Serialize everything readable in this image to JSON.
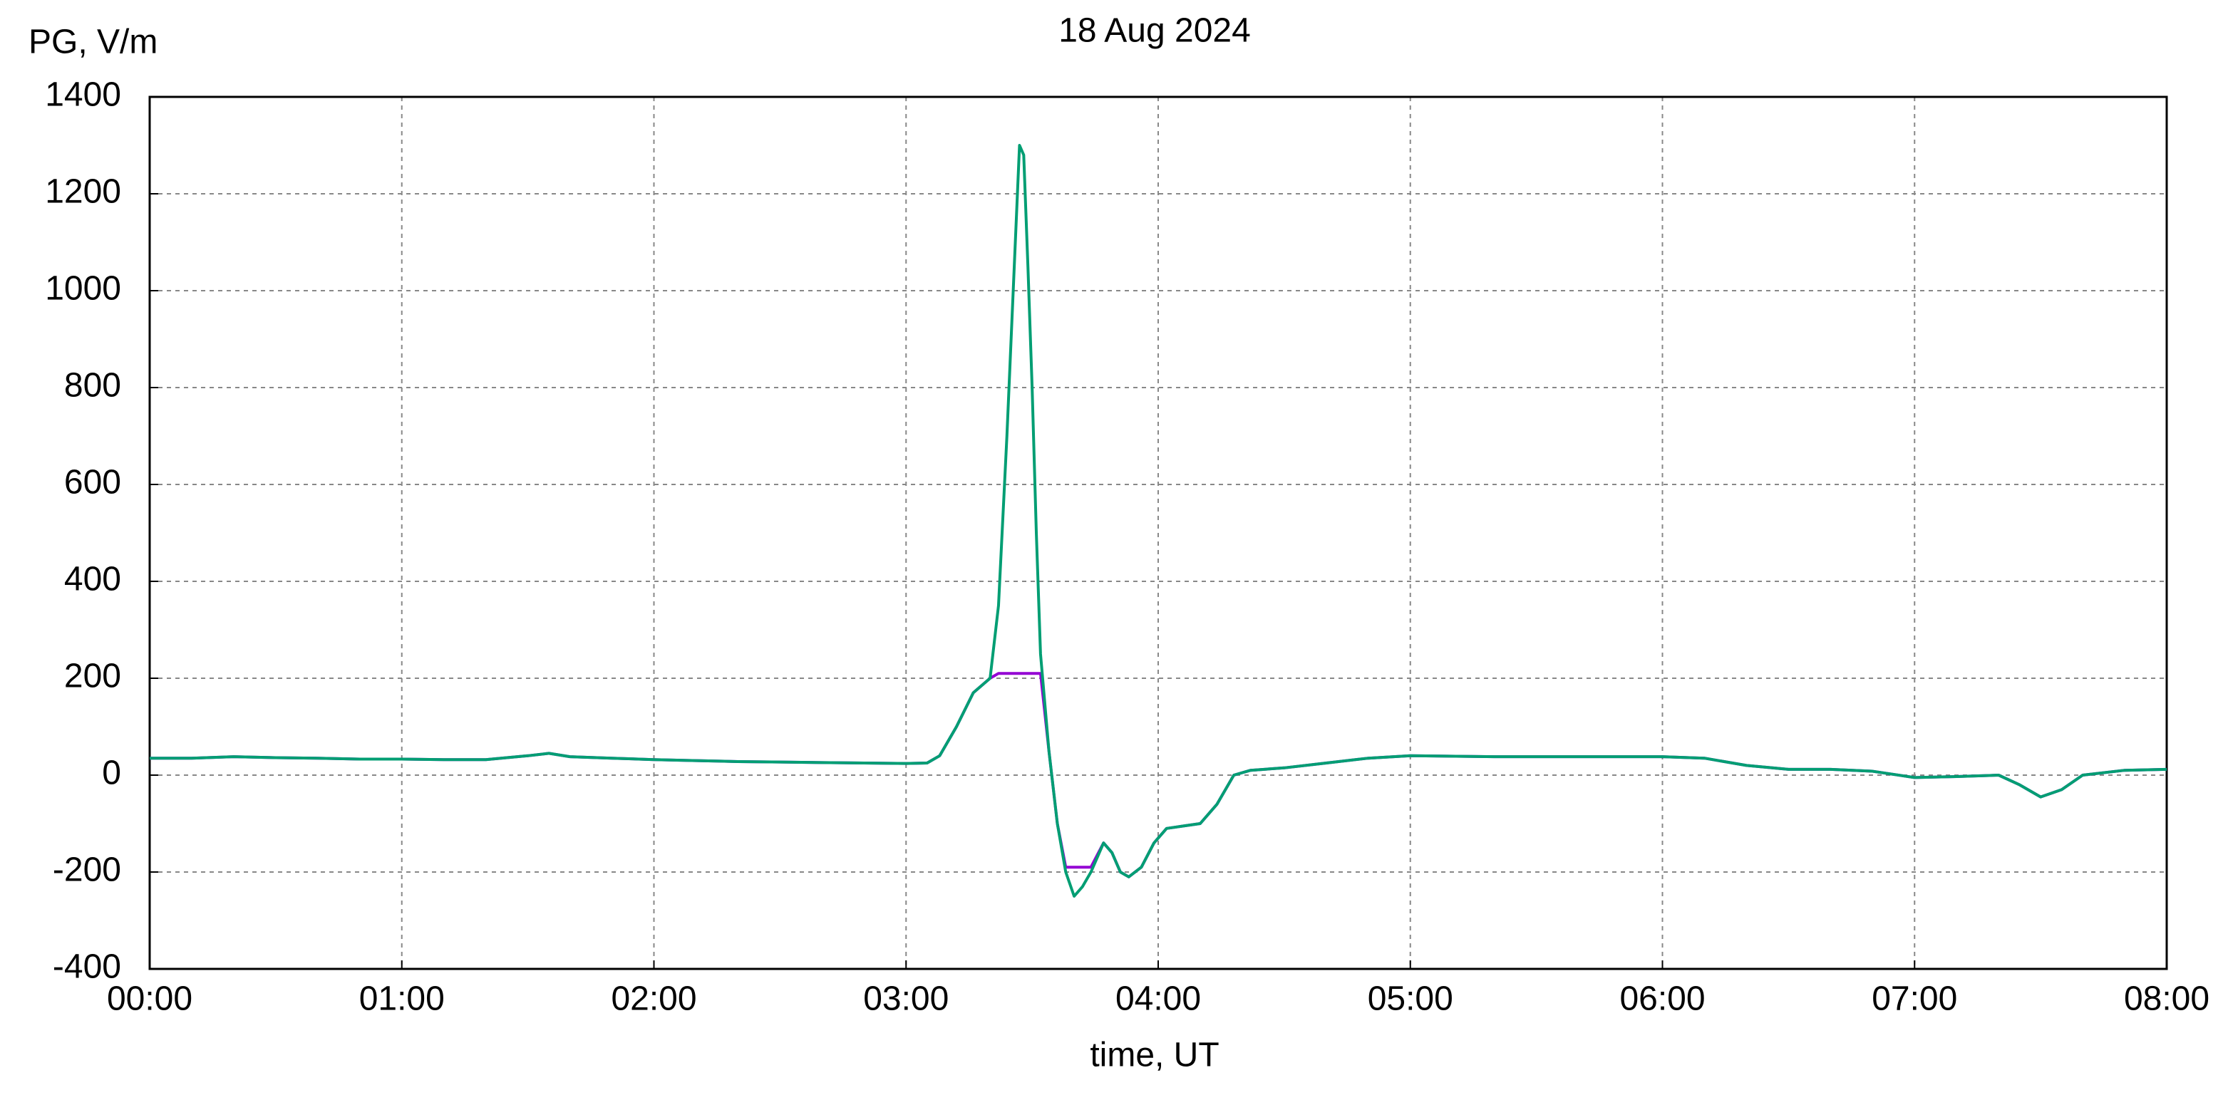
{
  "chart_data": {
    "type": "line",
    "title": "18 Aug 2024",
    "ylabel": "PG, V/m",
    "xlabel": "time, UT",
    "x": [
      0,
      10,
      20,
      30,
      40,
      50,
      60,
      70,
      80,
      90,
      95,
      100,
      110,
      120,
      130,
      140,
      150,
      160,
      170,
      180,
      185,
      188,
      192,
      196,
      200,
      202,
      204,
      206,
      207,
      208,
      209,
      210,
      211,
      212,
      214,
      216,
      218,
      220,
      222,
      224,
      227,
      229,
      231,
      233,
      236,
      239,
      242,
      246,
      250,
      254,
      258,
      262,
      270,
      280,
      290,
      300,
      320,
      340,
      360,
      370,
      380,
      390,
      400,
      410,
      420,
      430,
      440,
      445,
      450,
      455,
      460,
      470,
      480
    ],
    "series": [
      {
        "color": "#9400d3",
        "values": [
          35,
          35,
          38,
          36,
          35,
          33,
          33,
          32,
          32,
          40,
          45,
          38,
          35,
          32,
          30,
          28,
          27,
          26,
          25,
          24,
          25,
          40,
          100,
          170,
          200,
          210,
          210,
          210,
          210,
          210,
          210,
          210,
          210,
          210,
          50,
          -100,
          -190,
          -190,
          -190,
          -190,
          -140,
          -160,
          -200,
          -210,
          -190,
          -140,
          -110,
          -105,
          -100,
          -60,
          0,
          10,
          15,
          25,
          35,
          40,
          38,
          38,
          38,
          35,
          20,
          12,
          12,
          8,
          -5,
          -3,
          0,
          -20,
          -45,
          -30,
          0,
          10,
          12
        ]
      },
      {
        "color": "#009e73",
        "values": [
          35,
          35,
          38,
          36,
          35,
          33,
          33,
          32,
          32,
          40,
          45,
          38,
          35,
          32,
          30,
          28,
          27,
          26,
          25,
          24,
          25,
          40,
          100,
          170,
          200,
          350,
          700,
          1100,
          1300,
          1280,
          1050,
          800,
          500,
          250,
          50,
          -100,
          -200,
          -250,
          -230,
          -200,
          -140,
          -160,
          -200,
          -210,
          -190,
          -140,
          -110,
          -105,
          -100,
          -60,
          0,
          10,
          15,
          25,
          35,
          40,
          38,
          38,
          38,
          35,
          20,
          12,
          12,
          8,
          -5,
          -3,
          0,
          -20,
          -45,
          -30,
          0,
          10,
          12
        ]
      }
    ],
    "xlim": [
      0,
      480
    ],
    "xticks": [
      {
        "value": 0,
        "label": "00:00"
      },
      {
        "value": 60,
        "label": "01:00"
      },
      {
        "value": 120,
        "label": "02:00"
      },
      {
        "value": 180,
        "label": "03:00"
      },
      {
        "value": 240,
        "label": "04:00"
      },
      {
        "value": 300,
        "label": "05:00"
      },
      {
        "value": 360,
        "label": "06:00"
      },
      {
        "value": 420,
        "label": "07:00"
      },
      {
        "value": 480,
        "label": "08:00"
      }
    ],
    "ylim": [
      -400,
      1400
    ],
    "yticks": [
      -400,
      -200,
      0,
      200,
      400,
      600,
      800,
      1000,
      1200,
      1400
    ],
    "grid": true
  }
}
